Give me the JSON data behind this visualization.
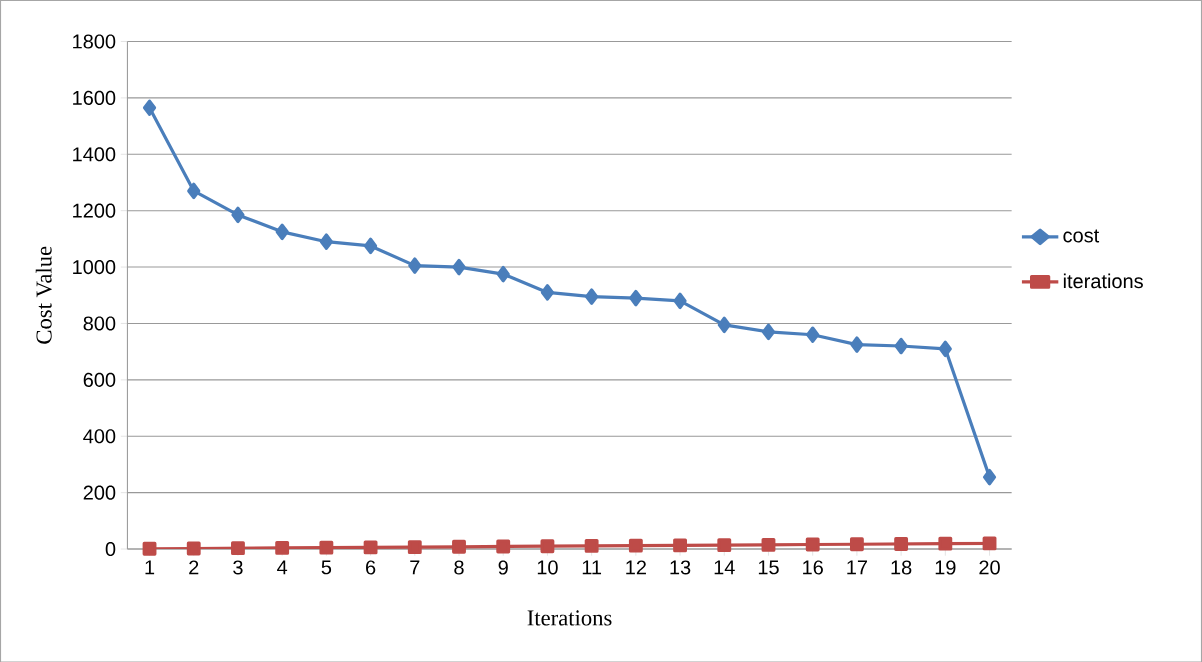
{
  "chart_data": {
    "type": "line",
    "xlabel": "Iterations",
    "ylabel": "Cost Value",
    "categories": [
      "1",
      "2",
      "3",
      "4",
      "5",
      "6",
      "7",
      "8",
      "9",
      "10",
      "11",
      "12",
      "13",
      "14",
      "15",
      "16",
      "17",
      "18",
      "19",
      "20"
    ],
    "series": [
      {
        "name": "cost",
        "color": "#4a7ebb",
        "marker": "diamond",
        "values": [
          1565,
          1270,
          1185,
          1125,
          1090,
          1075,
          1005,
          1000,
          975,
          910,
          895,
          890,
          880,
          795,
          770,
          760,
          725,
          720,
          710,
          255
        ]
      },
      {
        "name": "iterations",
        "color": "#be4b48",
        "marker": "square",
        "values": [
          1,
          2,
          3,
          4,
          5,
          6,
          7,
          8,
          9,
          10,
          11,
          12,
          13,
          14,
          15,
          16,
          17,
          18,
          19,
          20
        ]
      }
    ],
    "ylim": [
      0,
      1800
    ],
    "yticks": [
      0,
      200,
      400,
      600,
      800,
      1000,
      1200,
      1400,
      1600,
      1800
    ],
    "grid": "y",
    "legend": "right",
    "line_style": "solid"
  }
}
